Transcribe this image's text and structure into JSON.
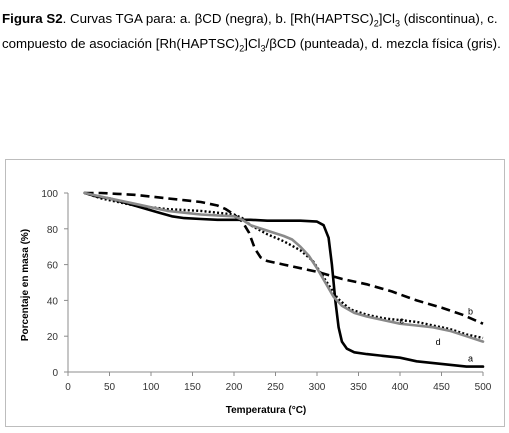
{
  "caption": {
    "label": "Figura S2",
    "seg1": ". Curvas TGA para: a. βCD (negra), b. [Rh(HAPTSC)",
    "sub1": "2",
    "seg2": "]Cl",
    "sub2": "3",
    "seg3": " (discontinua), c. compuesto de asociación [Rh(HAPTSC)",
    "sub3": "2",
    "seg4": "]Cl",
    "sub4": "3",
    "seg5": "/βCD (punteada), d. mezcla física (gris)."
  },
  "chart_data": {
    "type": "line",
    "xlabel": "Temperatura (°C)",
    "ylabel": "Porcentaje en masa (%)",
    "xlim": [
      0,
      500
    ],
    "ylim": [
      0,
      100
    ],
    "xticks": [
      0,
      50,
      100,
      150,
      200,
      250,
      300,
      350,
      400,
      450,
      500
    ],
    "yticks": [
      0,
      20,
      40,
      60,
      80,
      100
    ],
    "grid": false,
    "legend": "none",
    "series": [
      {
        "name": "a",
        "color": "#000000",
        "style": "solid",
        "points": [
          [
            20,
            100
          ],
          [
            35,
            98
          ],
          [
            50,
            97
          ],
          [
            65,
            95
          ],
          [
            80,
            93
          ],
          [
            95,
            91
          ],
          [
            110,
            89
          ],
          [
            125,
            87
          ],
          [
            140,
            86
          ],
          [
            160,
            85.5
          ],
          [
            180,
            85
          ],
          [
            200,
            85
          ],
          [
            220,
            85
          ],
          [
            240,
            84.5
          ],
          [
            260,
            84.5
          ],
          [
            280,
            84.5
          ],
          [
            300,
            84
          ],
          [
            308,
            82
          ],
          [
            314,
            75
          ],
          [
            318,
            60
          ],
          [
            322,
            40
          ],
          [
            326,
            25
          ],
          [
            330,
            17
          ],
          [
            336,
            13
          ],
          [
            345,
            11
          ],
          [
            360,
            10
          ],
          [
            380,
            9
          ],
          [
            400,
            8
          ],
          [
            420,
            6
          ],
          [
            440,
            5
          ],
          [
            460,
            4
          ],
          [
            480,
            3
          ],
          [
            500,
            3
          ]
        ]
      },
      {
        "name": "b",
        "color": "#000000",
        "style": "dashed",
        "points": [
          [
            20,
            100
          ],
          [
            40,
            100
          ],
          [
            60,
            99.5
          ],
          [
            80,
            99
          ],
          [
            100,
            98
          ],
          [
            120,
            97
          ],
          [
            140,
            96
          ],
          [
            160,
            95
          ],
          [
            180,
            93
          ],
          [
            190,
            91
          ],
          [
            200,
            88
          ],
          [
            210,
            84
          ],
          [
            218,
            78
          ],
          [
            225,
            69
          ],
          [
            232,
            64
          ],
          [
            240,
            62
          ],
          [
            260,
            60
          ],
          [
            280,
            58
          ],
          [
            300,
            56
          ],
          [
            330,
            52
          ],
          [
            360,
            49
          ],
          [
            390,
            45
          ],
          [
            420,
            40
          ],
          [
            450,
            36
          ],
          [
            475,
            32
          ],
          [
            500,
            27
          ]
        ]
      },
      {
        "name": "c",
        "color": "#000000",
        "style": "dotted",
        "points": [
          [
            20,
            100
          ],
          [
            40,
            97
          ],
          [
            60,
            95
          ],
          [
            80,
            93
          ],
          [
            100,
            92
          ],
          [
            120,
            91
          ],
          [
            140,
            90.5
          ],
          [
            160,
            90
          ],
          [
            180,
            89
          ],
          [
            200,
            88
          ],
          [
            210,
            86
          ],
          [
            220,
            82
          ],
          [
            240,
            77
          ],
          [
            260,
            73
          ],
          [
            280,
            68
          ],
          [
            295,
            62
          ],
          [
            305,
            55
          ],
          [
            315,
            48
          ],
          [
            325,
            41
          ],
          [
            340,
            35
          ],
          [
            360,
            32
          ],
          [
            380,
            30
          ],
          [
            400,
            29
          ],
          [
            420,
            28
          ],
          [
            440,
            26
          ],
          [
            460,
            24
          ],
          [
            480,
            21
          ],
          [
            500,
            19
          ]
        ]
      },
      {
        "name": "d",
        "color": "#8a8a8a",
        "style": "solid",
        "points": [
          [
            20,
            100
          ],
          [
            40,
            98
          ],
          [
            60,
            96
          ],
          [
            80,
            94
          ],
          [
            100,
            92
          ],
          [
            120,
            90
          ],
          [
            140,
            89
          ],
          [
            160,
            88
          ],
          [
            180,
            87.5
          ],
          [
            200,
            87
          ],
          [
            210,
            85
          ],
          [
            220,
            82
          ],
          [
            240,
            79
          ],
          [
            260,
            76
          ],
          [
            270,
            74
          ],
          [
            280,
            70
          ],
          [
            290,
            65
          ],
          [
            300,
            58
          ],
          [
            310,
            50
          ],
          [
            320,
            42
          ],
          [
            330,
            37
          ],
          [
            345,
            33
          ],
          [
            360,
            31
          ],
          [
            380,
            29
          ],
          [
            400,
            27
          ],
          [
            420,
            26
          ],
          [
            440,
            25
          ],
          [
            460,
            23
          ],
          [
            480,
            20
          ],
          [
            500,
            17
          ]
        ]
      }
    ],
    "annotations": [
      {
        "text": "a",
        "x": 485,
        "y": 6
      },
      {
        "text": "b",
        "x": 485,
        "y": 32
      },
      {
        "text": "c",
        "x": 402,
        "y": 27
      },
      {
        "text": "d",
        "x": 446,
        "y": 15
      }
    ]
  }
}
